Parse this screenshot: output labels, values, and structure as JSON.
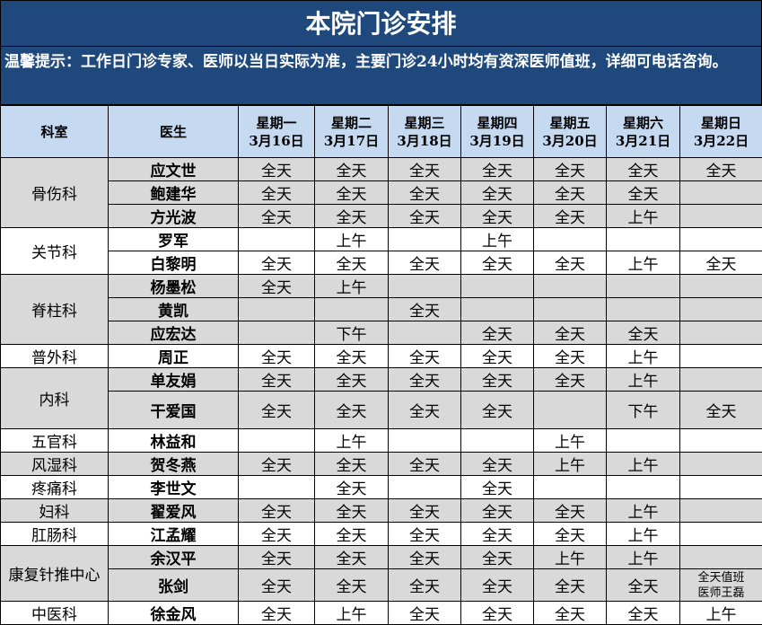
{
  "header": {
    "title": "本院门诊安排",
    "note": "温馨提示：工作日门诊专家、医师以当日实际为准，主要门诊24小时均有资深医师值班，详细可电话咨询。"
  },
  "table": {
    "columns": {
      "dept": "科室",
      "doctor": "医生",
      "days": [
        {
          "weekday": "星期一",
          "date": "3月16日"
        },
        {
          "weekday": "星期二",
          "date": "3月17日"
        },
        {
          "weekday": "星期三",
          "date": "3月18日"
        },
        {
          "weekday": "星期四",
          "date": "3月19日"
        },
        {
          "weekday": "星期五",
          "date": "3月20日"
        },
        {
          "weekday": "星期六",
          "date": "3月21日"
        },
        {
          "weekday": "星期日",
          "date": "3月22日"
        }
      ]
    },
    "groups": [
      {
        "dept": "骨伤科",
        "doctors": [
          {
            "name": "应文世",
            "schedule": [
              "全天",
              "全天",
              "全天",
              "全天",
              "全天",
              "全天",
              "全天"
            ]
          },
          {
            "name": "鲍建华",
            "schedule": [
              "全天",
              "全天",
              "全天",
              "全天",
              "全天",
              "全天",
              null
            ]
          },
          {
            "name": "方光波",
            "schedule": [
              "全天",
              "全天",
              "全天",
              "全天",
              "全天",
              "上午",
              null
            ]
          }
        ]
      },
      {
        "dept": "关节科",
        "doctors": [
          {
            "name": "罗军",
            "schedule": [
              null,
              "上午",
              null,
              "上午",
              null,
              null,
              null
            ]
          },
          {
            "name": "白黎明",
            "schedule": [
              "全天",
              "全天",
              "全天",
              "全天",
              "全天",
              "上午",
              "全天"
            ]
          }
        ]
      },
      {
        "dept": "脊柱科",
        "doctors": [
          {
            "name": "杨墨松",
            "schedule": [
              "全天",
              "上午",
              null,
              null,
              null,
              null,
              null
            ]
          },
          {
            "name": "黄凯",
            "schedule": [
              null,
              null,
              "全天",
              null,
              null,
              null,
              null
            ]
          },
          {
            "name": "应宏达",
            "schedule": [
              null,
              "下午",
              null,
              "全天",
              "全天",
              "全天",
              null
            ]
          }
        ]
      },
      {
        "dept": "普外科",
        "doctors": [
          {
            "name": "周正",
            "schedule": [
              "全天",
              "全天",
              "全天",
              "全天",
              "全天",
              "上午",
              null
            ]
          }
        ]
      },
      {
        "dept": "内科",
        "doctors": [
          {
            "name": "单友娟",
            "schedule": [
              "全天",
              "全天",
              "全天",
              "全天",
              "全天",
              "上午",
              null
            ]
          },
          {
            "name": "干爱国",
            "schedule": [
              "全天",
              "全天",
              "全天",
              "全天",
              null,
              "下午",
              "全天"
            ]
          }
        ]
      },
      {
        "dept": "五官科",
        "doctors": [
          {
            "name": "林益和",
            "schedule": [
              null,
              "上午",
              null,
              null,
              "上午",
              null,
              null
            ]
          }
        ]
      },
      {
        "dept": "风湿科",
        "doctors": [
          {
            "name": "贺冬燕",
            "schedule": [
              "全天",
              "全天",
              "全天",
              "全天",
              "上午",
              "上午",
              null
            ]
          }
        ]
      },
      {
        "dept": "疼痛科",
        "doctors": [
          {
            "name": "李世文",
            "schedule": [
              null,
              "全天",
              null,
              "全天",
              null,
              null,
              null
            ]
          }
        ]
      },
      {
        "dept": "妇科",
        "doctors": [
          {
            "name": "翟爱风",
            "schedule": [
              "全天",
              "全天",
              "全天",
              "全天",
              "全天",
              "上午",
              null
            ]
          }
        ]
      },
      {
        "dept": "肛肠科",
        "doctors": [
          {
            "name": "江孟耀",
            "schedule": [
              "全天",
              "全天",
              "全天",
              "全天",
              "全天",
              "上午",
              null
            ]
          }
        ]
      },
      {
        "dept": "康复针推中心",
        "doctors": [
          {
            "name": "余汉平",
            "schedule": [
              "全天",
              "全天",
              "全天",
              "全天",
              "上午",
              "上午",
              null
            ]
          },
          {
            "name": "张剑",
            "schedule": [
              "全天",
              "全天",
              "全天",
              "全天",
              "全天",
              "全天",
              [
                "全天值班",
                "医师王磊"
              ]
            ]
          }
        ]
      },
      {
        "dept": "中医科",
        "doctors": [
          {
            "name": "徐金风",
            "schedule": [
              "全天",
              "上午",
              "全天",
              "全天",
              "全天",
              "全天",
              "上午"
            ]
          }
        ]
      }
    ]
  }
}
